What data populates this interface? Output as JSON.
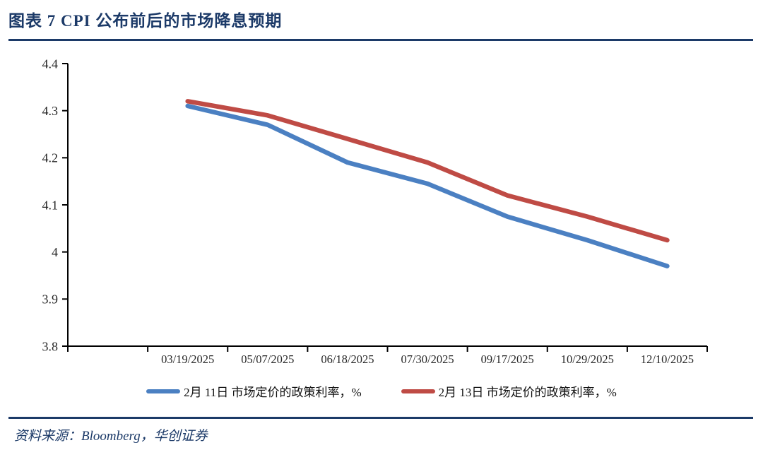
{
  "header": {
    "title": "图表 7  CPI 公布前后的市场降息预期"
  },
  "chart_data": {
    "type": "line",
    "title": "图表 7  CPI 公布前后的市场降息预期",
    "categories": [
      "03/19/2025",
      "05/07/2025",
      "06/18/2025",
      "07/30/2025",
      "09/17/2025",
      "10/29/2025",
      "12/10/2025"
    ],
    "series": [
      {
        "name": "2月 11日 市场定价的政策利率，%",
        "color": "#4b80c2",
        "values": [
          4.31,
          4.27,
          4.19,
          4.145,
          4.075,
          4.025,
          3.97
        ]
      },
      {
        "name": "2月 13日 市场定价的政策利率，%",
        "color": "#bf4b45",
        "values": [
          4.32,
          4.29,
          4.24,
          4.19,
          4.12,
          4.075,
          4.025
        ]
      }
    ],
    "ylim": [
      3.8,
      4.4
    ],
    "ytick_step": 0.1,
    "ytick_labels_top_to_bottom": [
      "4.4",
      "4.3",
      "4.2",
      "4.1",
      "4",
      "3.9",
      "3.8"
    ],
    "xlabel": "",
    "ylabel": "",
    "grid": false,
    "legend_position": "bottom",
    "leading_empty_slots": 1,
    "axis_color": "#000000",
    "tick_label_color": "#262626"
  },
  "footer": {
    "source": "资料来源：Bloomberg，华创证券"
  }
}
